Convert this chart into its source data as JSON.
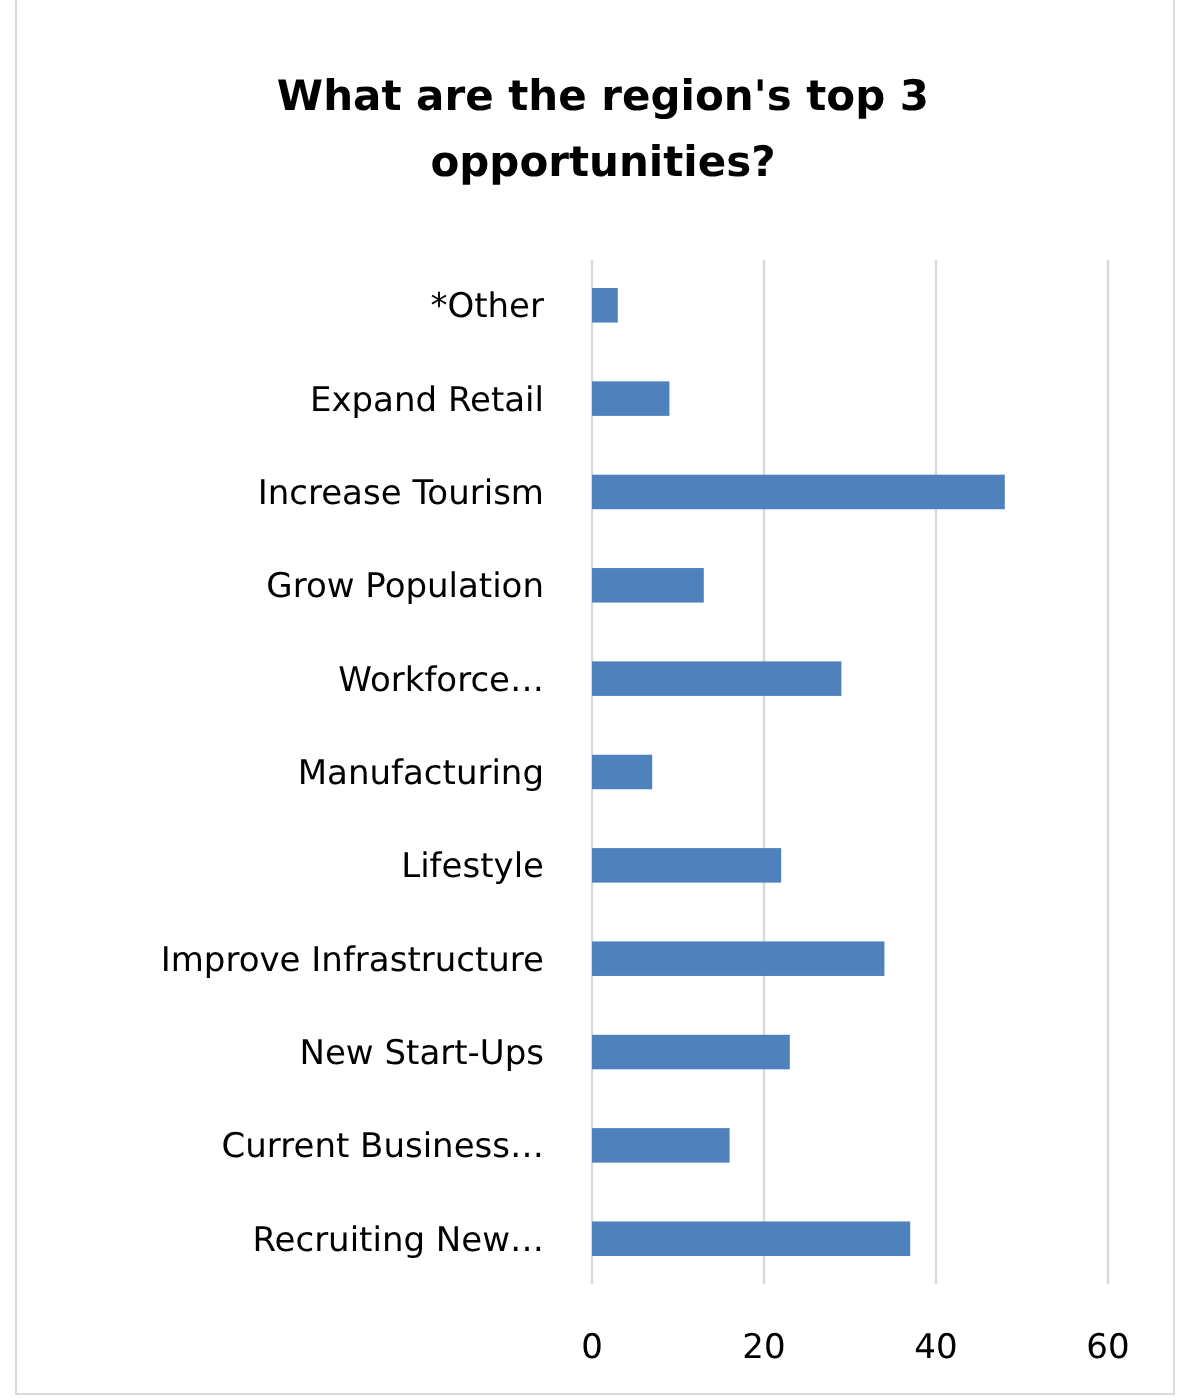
{
  "chart_data": {
    "type": "bar",
    "orientation": "horizontal",
    "title": "What are the region's top 3 opportunities?",
    "categories": [
      "*Other",
      "Expand Retail",
      "Increase Tourism",
      "Grow Population",
      "Workforce…",
      "Manufacturing",
      "Lifestyle",
      "Improve Infrastructure",
      "New Start-Ups",
      "Current Business…",
      "Recruiting New…"
    ],
    "values": [
      3,
      9,
      48,
      13,
      29,
      7,
      22,
      34,
      23,
      16,
      37
    ],
    "color": "#4f81bd",
    "xlim": [
      0,
      60
    ],
    "xticks": [
      0,
      20,
      40,
      60
    ],
    "grid": "x"
  }
}
